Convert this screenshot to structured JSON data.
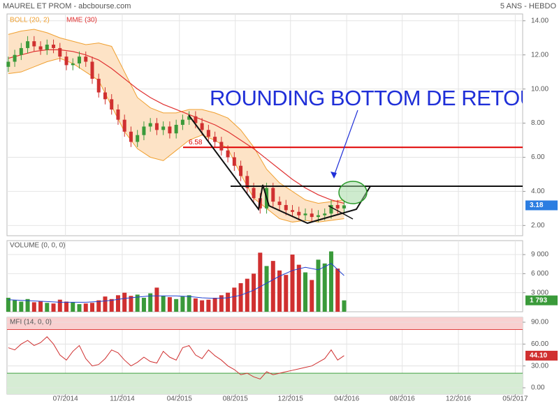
{
  "header": {
    "title": "MAUREL ET PROM - abcbourse.com",
    "period": "5 ANS - HEBDO"
  },
  "chart_data": [
    {
      "type": "candlestick",
      "x": [
        0,
        2,
        4,
        6,
        8,
        10,
        12,
        14,
        16,
        18,
        20,
        22,
        24,
        26,
        28,
        30,
        32,
        34,
        36,
        38,
        40,
        42,
        44,
        46,
        48,
        50,
        52,
        54,
        56,
        58,
        60,
        62,
        64,
        66,
        68,
        70,
        72,
        74,
        76,
        78,
        80,
        82,
        84,
        86,
        88,
        90,
        92,
        94,
        96,
        98,
        100,
        102,
        104
      ],
      "open": [
        11.3,
        11.6,
        12.0,
        12.4,
        12.8,
        12.5,
        12.3,
        12.6,
        12.4,
        11.9,
        11.4,
        11.5,
        11.9,
        11.6,
        10.6,
        9.8,
        9.4,
        8.8,
        8.2,
        7.5,
        6.9,
        7.3,
        7.8,
        8.0,
        7.6,
        7.8,
        7.4,
        7.9,
        8.2,
        8.4,
        8.0,
        7.6,
        7.2,
        6.9,
        6.4,
        6.0,
        5.5,
        4.9,
        4.2,
        3.6,
        3.0,
        4.2,
        3.4,
        3.2,
        2.9,
        2.8,
        2.6,
        2.7,
        2.5,
        2.6,
        2.7,
        3.2,
        3.0
      ],
      "high": [
        11.9,
        12.3,
        12.7,
        13.1,
        13.1,
        12.8,
        12.9,
        12.9,
        12.7,
        12.2,
        11.8,
        12.2,
        12.2,
        11.9,
        10.9,
        10.1,
        9.7,
        9.1,
        8.5,
        7.8,
        7.6,
        8.1,
        8.3,
        8.3,
        8.1,
        8.1,
        8.2,
        8.5,
        8.7,
        8.7,
        8.3,
        7.9,
        7.5,
        7.2,
        6.7,
        6.3,
        5.8,
        5.2,
        4.5,
        3.9,
        4.5,
        4.5,
        3.7,
        3.5,
        3.2,
        3.1,
        3.0,
        3.0,
        2.9,
        3.0,
        3.5,
        3.5,
        3.48
      ],
      "low": [
        11.0,
        11.3,
        11.7,
        12.1,
        12.2,
        12.0,
        12.0,
        12.1,
        11.6,
        11.1,
        11.1,
        11.2,
        11.3,
        10.3,
        9.5,
        9.1,
        8.5,
        7.9,
        7.2,
        6.6,
        6.6,
        7.0,
        7.5,
        7.3,
        7.3,
        7.1,
        7.1,
        7.6,
        7.9,
        7.7,
        7.3,
        6.9,
        6.6,
        6.1,
        5.7,
        5.2,
        4.6,
        3.9,
        3.3,
        2.7,
        2.7,
        3.1,
        2.9,
        2.6,
        2.5,
        2.3,
        2.3,
        2.2,
        2.2,
        2.3,
        2.4,
        2.7,
        2.7
      ],
      "close": [
        11.6,
        12.0,
        12.4,
        12.8,
        12.5,
        12.3,
        12.6,
        12.4,
        11.9,
        11.4,
        11.5,
        11.9,
        11.6,
        10.6,
        9.8,
        9.4,
        8.8,
        8.2,
        7.5,
        6.9,
        7.3,
        7.8,
        8.0,
        7.6,
        7.8,
        7.4,
        7.9,
        8.2,
        8.4,
        8.0,
        7.6,
        7.2,
        6.9,
        6.4,
        6.0,
        5.5,
        4.9,
        4.2,
        3.6,
        3.0,
        4.2,
        3.4,
        3.2,
        2.9,
        2.8,
        2.6,
        2.7,
        2.5,
        2.6,
        2.7,
        3.2,
        3.0,
        3.18
      ],
      "up_color": "#3a9a3a",
      "down_color": "#d03030",
      "series": [
        {
          "name": "BOLL (20, 2)",
          "color": "#f0a030",
          "fill": "#fde3c6",
          "x": [
            0,
            4,
            8,
            12,
            16,
            20,
            24,
            28,
            32,
            36,
            40,
            44,
            48,
            52,
            56,
            60,
            64,
            68,
            72,
            76,
            80,
            84,
            88,
            92,
            96,
            100,
            104
          ],
          "upper": [
            13.2,
            13.4,
            13.5,
            13.3,
            13.0,
            12.8,
            12.6,
            12.7,
            12.5,
            11.0,
            9.5,
            8.9,
            8.6,
            8.6,
            8.8,
            8.8,
            8.6,
            8.3,
            7.6,
            6.6,
            5.3,
            4.5,
            4.0,
            3.5,
            3.3,
            3.4,
            3.5
          ],
          "lower": [
            10.9,
            11.0,
            11.3,
            11.6,
            11.8,
            11.5,
            11.0,
            10.5,
            9.0,
            7.5,
            6.5,
            6.0,
            5.8,
            6.4,
            7.0,
            7.3,
            7.0,
            6.5,
            5.0,
            3.6,
            3.0,
            2.4,
            2.2,
            2.3,
            2.2,
            2.3,
            2.4
          ]
        },
        {
          "name": "MME (30)",
          "color": "#e03030",
          "x": [
            0,
            4,
            8,
            12,
            16,
            20,
            24,
            28,
            32,
            36,
            40,
            44,
            48,
            52,
            56,
            60,
            64,
            68,
            72,
            76,
            80,
            84,
            88,
            92,
            96,
            100,
            104
          ],
          "values": [
            11.8,
            12.0,
            12.2,
            12.3,
            12.3,
            12.2,
            12.0,
            11.7,
            11.2,
            10.6,
            10.0,
            9.5,
            9.1,
            8.8,
            8.5,
            8.2,
            7.9,
            7.5,
            7.0,
            6.5,
            5.9,
            5.3,
            4.7,
            4.2,
            3.8,
            3.5,
            3.3
          ]
        }
      ],
      "levels": [
        {
          "value": 6.58,
          "color": "#e00000"
        }
      ],
      "annotation": "ROUNDING BOTTOM DE RETOUR",
      "last_color": "#2b7de1",
      "xlim": [
        -0.4,
        159.3
      ],
      "ylim": [
        1.4,
        14.4
      ],
      "yticks": [
        {
          "value": 2,
          "label": "2.00"
        },
        {
          "value": 4,
          "label": "4.00"
        },
        {
          "value": 6,
          "label": "6.00"
        },
        {
          "value": 8,
          "label": "8.00"
        },
        {
          "value": 10,
          "label": "10.00"
        },
        {
          "value": 12,
          "label": "12.00"
        },
        {
          "value": 14,
          "label": "14.00"
        }
      ],
      "grid": true
    },
    {
      "type": "bar",
      "title": "VOLUME (0, 0, 0)",
      "x": [
        0,
        2,
        4,
        6,
        8,
        10,
        12,
        14,
        16,
        18,
        20,
        22,
        24,
        26,
        28,
        30,
        32,
        34,
        36,
        38,
        40,
        42,
        44,
        46,
        48,
        50,
        52,
        54,
        56,
        58,
        60,
        62,
        64,
        66,
        68,
        70,
        72,
        74,
        76,
        78,
        80,
        82,
        84,
        86,
        88,
        90,
        92,
        94,
        96,
        98,
        100,
        102,
        104
      ],
      "values": [
        2200,
        1800,
        1600,
        2000,
        1500,
        1700,
        1400,
        1300,
        1900,
        1600,
        1500,
        1200,
        1300,
        1400,
        1800,
        2400,
        2000,
        2600,
        3000,
        2500,
        2700,
        2200,
        2900,
        3800,
        2500,
        2300,
        2000,
        2400,
        2600,
        2100,
        1800,
        1900,
        2200,
        2600,
        3000,
        3800,
        4500,
        5200,
        6000,
        9300,
        7200,
        8000,
        6500,
        5800,
        9000,
        7400,
        6200,
        5000,
        8200,
        7600,
        9500,
        6800,
        1793
      ],
      "value_labels": [
        null,
        null,
        null,
        null,
        null,
        null,
        null,
        null,
        null,
        null,
        null,
        null,
        null,
        null,
        null,
        null,
        null,
        null,
        null,
        null,
        null,
        null,
        null,
        null,
        null,
        null,
        null,
        null,
        null,
        null,
        null,
        null,
        null,
        null,
        null,
        null,
        null,
        null,
        null,
        null,
        null,
        null,
        null,
        null,
        null,
        null,
        null,
        null,
        null,
        null,
        null,
        null,
        "1 793"
      ],
      "colors": [
        "#3a9a3a",
        "#3a9a3a",
        "#3a9a3a",
        "#3a9a3a",
        "#d03030",
        "#d03030",
        "#3a9a3a",
        "#d03030",
        "#d03030",
        "#d03030",
        "#3a9a3a",
        "#3a9a3a",
        "#d03030",
        "#d03030",
        "#d03030",
        "#d03030",
        "#d03030",
        "#d03030",
        "#d03030",
        "#d03030",
        "#3a9a3a",
        "#3a9a3a",
        "#3a9a3a",
        "#d03030",
        "#3a9a3a",
        "#d03030",
        "#3a9a3a",
        "#3a9a3a",
        "#3a9a3a",
        "#d03030",
        "#d03030",
        "#d03030",
        "#d03030",
        "#d03030",
        "#d03030",
        "#d03030",
        "#d03030",
        "#d03030",
        "#d03030",
        "#d03030",
        "#3a9a3a",
        "#d03030",
        "#d03030",
        "#d03030",
        "#d03030",
        "#d03030",
        "#3a9a3a",
        "#d03030",
        "#3a9a3a",
        "#3a9a3a",
        "#3a9a3a",
        "#d03030",
        "#3a9a3a"
      ],
      "ma": {
        "color": "#2040d0",
        "x": [
          0,
          4,
          8,
          12,
          16,
          20,
          24,
          28,
          32,
          36,
          40,
          44,
          48,
          52,
          56,
          60,
          64,
          68,
          72,
          76,
          80,
          84,
          88,
          92,
          96,
          100,
          104
        ],
        "values": [
          1900,
          1800,
          1700,
          1600,
          1500,
          1500,
          1500,
          1600,
          1800,
          2100,
          2300,
          2500,
          2500,
          2500,
          2400,
          2200,
          2100,
          2200,
          2600,
          3400,
          4500,
          5600,
          6500,
          7000,
          6600,
          7600,
          5700
        ]
      },
      "last_color": "#3a9a3a",
      "xlim": [
        -0.4,
        159.3
      ],
      "ylim": [
        0,
        11200
      ],
      "yticks": [
        {
          "value": 3000,
          "label": "3 000"
        },
        {
          "value": 6000,
          "label": "6 000"
        },
        {
          "value": 9000,
          "label": "9 000"
        }
      ],
      "grid": true
    },
    {
      "type": "line",
      "title": "MFI (14, 0, 0)",
      "x": [
        0,
        2,
        4,
        6,
        8,
        10,
        12,
        14,
        16,
        18,
        20,
        22,
        24,
        26,
        28,
        30,
        32,
        34,
        36,
        38,
        40,
        42,
        44,
        46,
        48,
        50,
        52,
        54,
        56,
        58,
        60,
        62,
        64,
        66,
        68,
        70,
        72,
        74,
        76,
        78,
        80,
        82,
        84,
        86,
        88,
        90,
        92,
        94,
        96,
        98,
        100,
        102,
        104
      ],
      "values": [
        55,
        52,
        60,
        65,
        58,
        62,
        70,
        60,
        45,
        38,
        50,
        58,
        40,
        30,
        32,
        40,
        52,
        48,
        38,
        30,
        35,
        42,
        36,
        34,
        50,
        42,
        38,
        55,
        58,
        45,
        40,
        52,
        44,
        38,
        30,
        25,
        18,
        20,
        15,
        12,
        22,
        18,
        20,
        22,
        24,
        26,
        28,
        30,
        35,
        40,
        52,
        38,
        44.1
      ],
      "value_labels": [
        null,
        null,
        null,
        null,
        null,
        null,
        null,
        null,
        null,
        null,
        null,
        null,
        null,
        null,
        null,
        null,
        null,
        null,
        null,
        null,
        null,
        null,
        null,
        null,
        null,
        null,
        null,
        null,
        null,
        null,
        null,
        null,
        null,
        null,
        null,
        null,
        null,
        null,
        null,
        null,
        null,
        null,
        null,
        null,
        null,
        null,
        null,
        null,
        null,
        null,
        null,
        null,
        "44.10"
      ],
      "color": "#d03030",
      "overbought_level": 80,
      "oversold_level": 20,
      "last_color": "#d03030",
      "xlim": [
        -0.4,
        159.3
      ],
      "ylim": [
        -8.6,
        96.7
      ],
      "yticks": [
        {
          "value": 0,
          "label": "0.00"
        },
        {
          "value": 30,
          "label": "30.00"
        },
        {
          "value": 60,
          "label": "60.00"
        },
        {
          "value": 90,
          "label": "90.00"
        }
      ],
      "xticks": [
        {
          "value": 17.7,
          "label": "07/2014"
        },
        {
          "value": 35.3,
          "label": "11/2014"
        },
        {
          "value": 53,
          "label": "04/2015"
        },
        {
          "value": 70.3,
          "label": "08/2015"
        },
        {
          "value": 87.4,
          "label": "12/2015"
        },
        {
          "value": 104.8,
          "label": "04/2016"
        },
        {
          "value": 122,
          "label": "08/2016"
        },
        {
          "value": 139.4,
          "label": "12/2016"
        },
        {
          "value": 157,
          "label": "05/2017"
        }
      ],
      "grid": true
    }
  ]
}
